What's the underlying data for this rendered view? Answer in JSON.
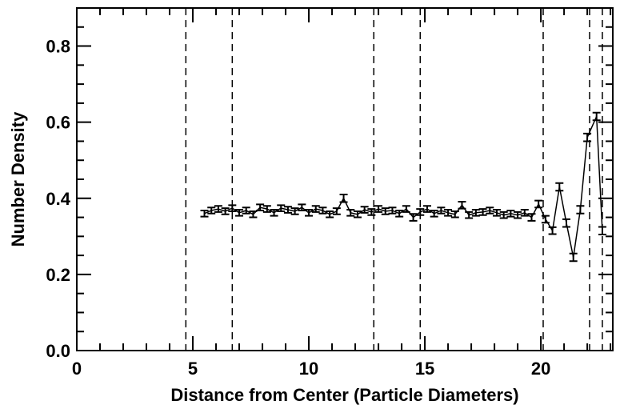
{
  "chart_data": {
    "type": "errorline",
    "x_label": "Distance from Center (Particle Diameters)",
    "y_label": "Number Density",
    "xlim": [
      0,
      23.1
    ],
    "ylim": [
      0,
      0.9
    ],
    "xticks": [
      0,
      5,
      10,
      15,
      20
    ],
    "yticks": [
      {
        "value": 0,
        "label": "0.0"
      },
      0.2,
      0.4,
      0.6,
      0.8
    ],
    "xminorticks": [
      1,
      2,
      3,
      4,
      6,
      7,
      8,
      9,
      11,
      12,
      13,
      14,
      16,
      17,
      18,
      19,
      21,
      22,
      23
    ],
    "yminorticks": [
      0.05,
      0.1,
      0.15,
      0.25,
      0.3,
      0.35,
      0.45,
      0.5,
      0.55,
      0.65,
      0.7,
      0.75,
      0.85
    ],
    "vlines": [
      4.7,
      6.7,
      12.8,
      14.8,
      20.1,
      22.1,
      22.65
    ],
    "color": "#000000",
    "x": [
      5.5,
      5.8,
      6.1,
      6.4,
      6.7,
      7.0,
      7.3,
      7.6,
      7.9,
      8.2,
      8.5,
      8.8,
      9.1,
      9.4,
      9.7,
      10.0,
      10.3,
      10.6,
      10.9,
      11.2,
      11.5,
      11.8,
      12.1,
      12.4,
      12.7,
      13.0,
      13.3,
      13.6,
      13.9,
      14.2,
      14.5,
      14.8,
      15.1,
      15.4,
      15.7,
      16.0,
      16.3,
      16.6,
      16.9,
      17.2,
      17.5,
      17.8,
      18.1,
      18.4,
      18.7,
      19.0,
      19.3,
      19.6,
      19.9,
      20.2,
      20.5,
      20.8,
      21.1,
      21.4,
      21.7,
      22.0,
      22.4,
      22.65
    ],
    "values": [
      0.36,
      0.368,
      0.372,
      0.366,
      0.374,
      0.362,
      0.368,
      0.358,
      0.376,
      0.372,
      0.362,
      0.374,
      0.37,
      0.366,
      0.376,
      0.362,
      0.372,
      0.368,
      0.358,
      0.366,
      0.4,
      0.362,
      0.358,
      0.37,
      0.364,
      0.372,
      0.366,
      0.368,
      0.36,
      0.372,
      0.35,
      0.364,
      0.372,
      0.36,
      0.368,
      0.362,
      0.358,
      0.382,
      0.356,
      0.362,
      0.364,
      0.368,
      0.362,
      0.356,
      0.36,
      0.356,
      0.362,
      0.35,
      0.385,
      0.345,
      0.315,
      0.43,
      0.335,
      0.245,
      0.37,
      0.56,
      0.615,
      0.315
    ],
    "errors": [
      0.008,
      0.008,
      0.008,
      0.008,
      0.008,
      0.008,
      0.008,
      0.008,
      0.008,
      0.008,
      0.008,
      0.008,
      0.008,
      0.008,
      0.008,
      0.008,
      0.008,
      0.008,
      0.008,
      0.008,
      0.01,
      0.008,
      0.008,
      0.008,
      0.008,
      0.008,
      0.008,
      0.008,
      0.008,
      0.008,
      0.009,
      0.008,
      0.008,
      0.008,
      0.008,
      0.008,
      0.008,
      0.009,
      0.008,
      0.008,
      0.008,
      0.008,
      0.008,
      0.008,
      0.008,
      0.008,
      0.008,
      0.009,
      0.009,
      0.009,
      0.009,
      0.01,
      0.01,
      0.01,
      0.01,
      0.01,
      0.01,
      0.01
    ]
  }
}
